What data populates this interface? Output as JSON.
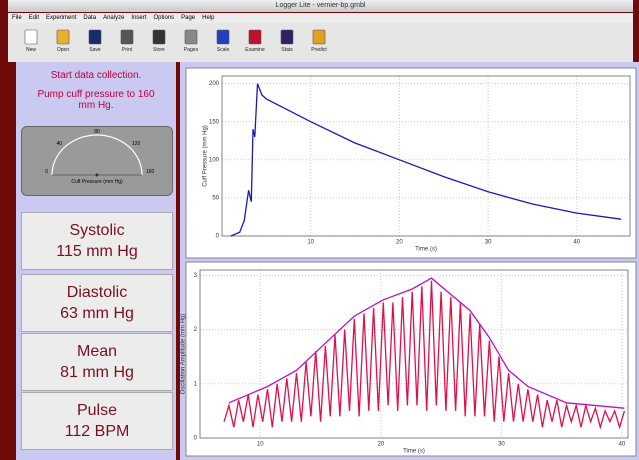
{
  "window": {
    "title": "Logger Lite - vernier-bp.gmbl"
  },
  "menu": [
    "File",
    "Edit",
    "Experiment",
    "Data",
    "Analyze",
    "Insert",
    "Options",
    "Page",
    "Help"
  ],
  "toolbar": [
    "New",
    "Open",
    "Save",
    "Print",
    "Store",
    "Pages",
    "Scale",
    "Examine",
    "Stats",
    "Predict"
  ],
  "instructions": [
    "Start data collection.",
    "Pump cuff pressure to 160 mm Hg."
  ],
  "gauge": {
    "label": "Cuff Pressure (mm Hg)",
    "ticks": [
      "0",
      "40",
      "80",
      "120",
      "160"
    ]
  },
  "readouts": [
    {
      "label": "Systolic",
      "value": "115 mm Hg"
    },
    {
      "label": "Diastolic",
      "value": "63 mm Hg"
    },
    {
      "label": "Mean",
      "value": "81 mm Hg"
    },
    {
      "label": "Pulse",
      "value": "112 BPM"
    }
  ],
  "chart_data": [
    {
      "type": "line",
      "x_label": "Time (s)",
      "y_label": "Cuff Pressure (mm Hg)",
      "xlim": [
        0,
        46
      ],
      "ylim": [
        0,
        210
      ],
      "xticks": [
        10,
        20,
        30,
        40
      ],
      "yticks": [
        0,
        50,
        100,
        150,
        200
      ],
      "grid": true,
      "series": [
        {
          "color": "#1a1ab4",
          "x": [
            1,
            2,
            2.5,
            3,
            3.3,
            3.5,
            3.7,
            4,
            4.5,
            5,
            10,
            15,
            20,
            25,
            30,
            35,
            40,
            45
          ],
          "values": [
            0,
            5,
            20,
            60,
            45,
            140,
            130,
            200,
            185,
            180,
            150,
            122,
            100,
            78,
            58,
            42,
            30,
            22
          ]
        }
      ]
    },
    {
      "type": "line",
      "x_label": "Time (s)",
      "y_label": "Oscillation Amplitude (mm Hg)",
      "xlim": [
        5,
        40.5
      ],
      "ylim": [
        0,
        3.1
      ],
      "xticks": [
        10,
        20,
        30,
        40
      ],
      "yticks": [
        0,
        1,
        2,
        3
      ],
      "grid": true,
      "series": [
        {
          "color": "#e0104a",
          "x": [
            7,
            7.4,
            7.8,
            8.2,
            8.6,
            9,
            9.4,
            9.8,
            10.2,
            10.6,
            11,
            11.4,
            11.8,
            12.2,
            12.6,
            13,
            13.4,
            13.8,
            14.2,
            14.6,
            15,
            15.4,
            15.8,
            16.2,
            16.6,
            17,
            17.4,
            17.8,
            18.2,
            18.6,
            19,
            19.4,
            19.8,
            20.2,
            20.6,
            21,
            21.4,
            21.8,
            22.2,
            22.6,
            23,
            23.4,
            23.8,
            24.2,
            24.6,
            25,
            25.4,
            25.8,
            26.2,
            26.6,
            27,
            27.4,
            27.8,
            28.2,
            28.6,
            29,
            29.4,
            29.8,
            30.2,
            30.6,
            31,
            31.4,
            31.8,
            32.2,
            32.6,
            33,
            33.4,
            33.8,
            34.2,
            34.6,
            35,
            35.4,
            35.8,
            36.2,
            36.6,
            37,
            37.4,
            37.8,
            38.2,
            38.6,
            39,
            39.4,
            39.8,
            40.2
          ],
          "values": [
            0.3,
            0.6,
            0.2,
            0.7,
            0.3,
            0.8,
            0.2,
            0.8,
            0.3,
            0.9,
            0.2,
            1.0,
            0.3,
            1.1,
            0.3,
            1.2,
            0.3,
            1.4,
            0.4,
            1.6,
            0.3,
            1.7,
            0.4,
            1.9,
            0.4,
            2.0,
            0.5,
            2.2,
            0.4,
            2.3,
            0.5,
            2.4,
            0.5,
            2.5,
            0.6,
            2.5,
            0.5,
            2.6,
            0.6,
            2.7,
            0.6,
            2.8,
            0.5,
            2.9,
            0.6,
            2.7,
            0.5,
            2.6,
            0.5,
            2.5,
            0.4,
            2.3,
            0.4,
            2.1,
            0.4,
            1.8,
            0.3,
            1.5,
            0.3,
            1.2,
            0.3,
            1.0,
            0.3,
            0.9,
            0.3,
            0.8,
            0.2,
            0.7,
            0.3,
            0.7,
            0.2,
            0.6,
            0.3,
            0.6,
            0.2,
            0.6,
            0.3,
            0.55,
            0.2,
            0.5,
            0.3,
            0.5,
            0.2,
            0.5
          ]
        },
        {
          "color": "#c010c0",
          "x": [
            7.4,
            10.6,
            13,
            15.4,
            17.8,
            20.2,
            22.6,
            24.2,
            25.8,
            27.4,
            29,
            30.6,
            32.2,
            35.4,
            40.2
          ],
          "values": [
            0.65,
            0.95,
            1.25,
            1.75,
            2.25,
            2.55,
            2.75,
            2.95,
            2.65,
            2.35,
            1.85,
            1.25,
            0.95,
            0.65,
            0.55
          ]
        }
      ]
    }
  ]
}
